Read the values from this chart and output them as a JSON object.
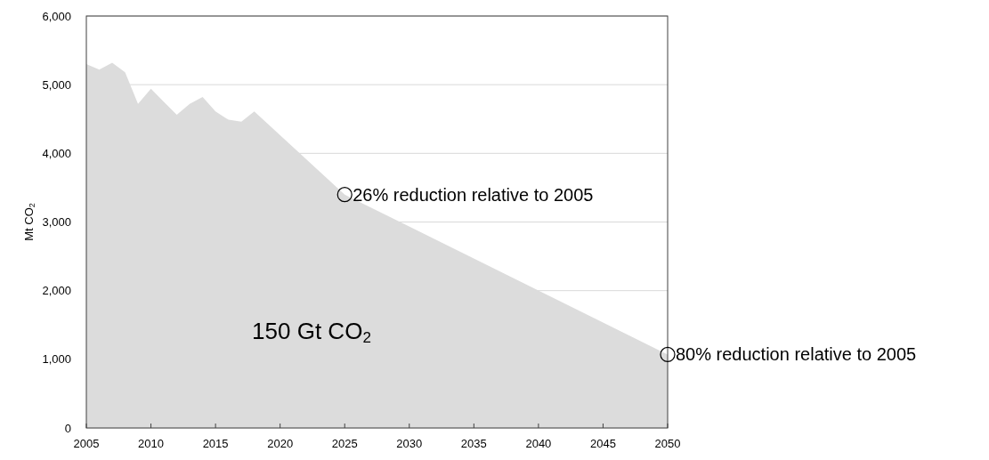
{
  "chart_data": {
    "type": "area",
    "ylabel": "Mt CO$_{2}$",
    "x": [
      2005,
      2006,
      2007,
      2008,
      2009,
      2010,
      2011,
      2012,
      2013,
      2014,
      2015,
      2016,
      2017,
      2018,
      2025,
      2050
    ],
    "series": [
      {
        "color": "#dcdcdc",
        "values": [
          5300,
          5220,
          5320,
          5180,
          4720,
          4940,
          4750,
          4560,
          4720,
          4820,
          4610,
          4490,
          4460,
          4610,
          3400,
          1070
        ]
      }
    ],
    "xlim": [
      2005,
      2050
    ],
    "xticks": [
      2005,
      2010,
      2015,
      2020,
      2025,
      2030,
      2035,
      2040,
      2045,
      2050
    ],
    "ylim": [
      0,
      6000
    ],
    "yticks": [
      {
        "value": 0,
        "label": "0"
      },
      {
        "value": 1000,
        "label": "1,000"
      },
      {
        "value": 2000,
        "label": "2,000"
      },
      {
        "value": 3000,
        "label": "3,000"
      },
      {
        "value": 4000,
        "label": "4,000"
      },
      {
        "value": 5000,
        "label": "5,000"
      },
      {
        "value": 6000,
        "label": "6,000"
      }
    ],
    "grid": "y",
    "annotations": [
      {
        "text": "26% reduction relative to 2005",
        "x": 2025,
        "y": 3400
      },
      {
        "text": "80% reduction relative to 2005",
        "x": 2050,
        "y": 1070
      },
      "150 Gt CO$_{2}$"
    ]
  }
}
